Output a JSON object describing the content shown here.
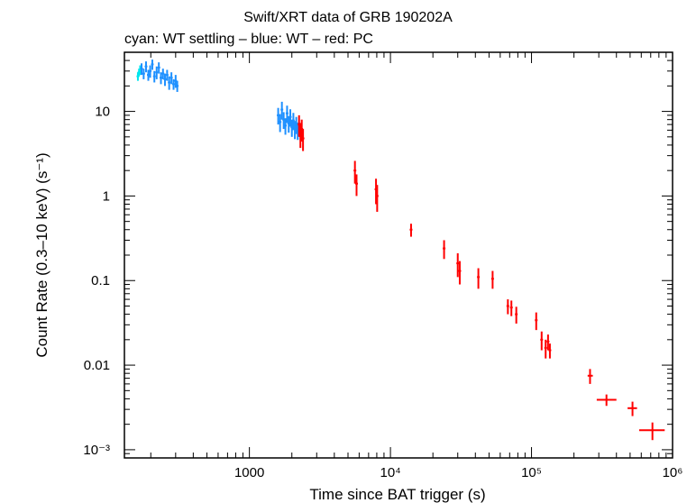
{
  "chart_data": {
    "type": "scatter",
    "title": "Swift/XRT data of GRB 190202A",
    "subtitle": "cyan: WT settling – blue: WT – red: PC",
    "xlabel": "Time since BAT trigger (s)",
    "ylabel": "Count Rate (0.3–10 keV) (s⁻¹)",
    "xscale": "log",
    "yscale": "log",
    "xlim": [
      130,
      1000000
    ],
    "ylim": [
      0.0008,
      50
    ],
    "x_ticks": [
      {
        "value": 1000,
        "label": "1000"
      },
      {
        "value": 10000,
        "label": "10⁴"
      },
      {
        "value": 100000,
        "label": "10⁵"
      },
      {
        "value": 1000000,
        "label": "10⁶"
      }
    ],
    "y_ticks": [
      {
        "value": 10,
        "label": "10"
      },
      {
        "value": 1,
        "label": "1"
      },
      {
        "value": 0.1,
        "label": "0.1"
      },
      {
        "value": 0.01,
        "label": "0.01"
      },
      {
        "value": 0.001,
        "label": "10⁻³"
      }
    ],
    "series": [
      {
        "name": "WT settling",
        "color": "#00e5ee",
        "points": [
          {
            "t": 162,
            "rate": 26,
            "rate_err": 3
          },
          {
            "t": 165,
            "rate": 29,
            "rate_err": 3
          },
          {
            "t": 168,
            "rate": 31,
            "rate_err": 4
          }
        ]
      },
      {
        "name": "WT",
        "color": "#1e90ff",
        "points": [
          {
            "t": 172,
            "rate": 32,
            "rate_err": 5
          },
          {
            "t": 178,
            "rate": 28,
            "rate_err": 4
          },
          {
            "t": 185,
            "rate": 34,
            "rate_err": 5
          },
          {
            "t": 192,
            "rate": 27,
            "rate_err": 4
          },
          {
            "t": 198,
            "rate": 30,
            "rate_err": 5
          },
          {
            "t": 205,
            "rate": 36,
            "rate_err": 5
          },
          {
            "t": 212,
            "rate": 26,
            "rate_err": 4
          },
          {
            "t": 220,
            "rate": 29,
            "rate_err": 5
          },
          {
            "t": 228,
            "rate": 33,
            "rate_err": 5
          },
          {
            "t": 236,
            "rate": 25,
            "rate_err": 4
          },
          {
            "t": 244,
            "rate": 28,
            "rate_err": 4
          },
          {
            "t": 252,
            "rate": 24,
            "rate_err": 4
          },
          {
            "t": 261,
            "rate": 27,
            "rate_err": 4
          },
          {
            "t": 270,
            "rate": 22,
            "rate_err": 4
          },
          {
            "t": 280,
            "rate": 25,
            "rate_err": 4
          },
          {
            "t": 290,
            "rate": 21,
            "rate_err": 3
          },
          {
            "t": 300,
            "rate": 23,
            "rate_err": 4
          },
          {
            "t": 308,
            "rate": 20,
            "rate_err": 3
          },
          {
            "t": 1600,
            "rate": 9.0,
            "rate_err": 2.0
          },
          {
            "t": 1650,
            "rate": 7.5,
            "rate_err": 1.8
          },
          {
            "t": 1700,
            "rate": 10.5,
            "rate_err": 2.5
          },
          {
            "t": 1750,
            "rate": 8.0,
            "rate_err": 1.8
          },
          {
            "t": 1800,
            "rate": 6.8,
            "rate_err": 1.5
          },
          {
            "t": 1850,
            "rate": 9.5,
            "rate_err": 2.2
          },
          {
            "t": 1900,
            "rate": 7.2,
            "rate_err": 1.6
          },
          {
            "t": 1950,
            "rate": 8.6,
            "rate_err": 2.0
          },
          {
            "t": 2000,
            "rate": 6.5,
            "rate_err": 1.5
          },
          {
            "t": 2050,
            "rate": 7.8,
            "rate_err": 1.8
          },
          {
            "t": 2100,
            "rate": 6.2,
            "rate_err": 1.5
          },
          {
            "t": 2150,
            "rate": 7.0,
            "rate_err": 1.6
          },
          {
            "t": 2200,
            "rate": 6.0,
            "rate_err": 1.4
          }
        ]
      },
      {
        "name": "PC",
        "color": "#ff0000",
        "points": [
          {
            "t": 2250,
            "rate": 7.0,
            "rate_err": 2.0
          },
          {
            "t": 2300,
            "rate": 5.5,
            "rate_err": 1.8
          },
          {
            "t": 2350,
            "rate": 6.2,
            "rate_err": 1.8
          },
          {
            "t": 2400,
            "rate": 4.8,
            "rate_err": 1.4
          },
          {
            "t": 5600,
            "rate": 2.0,
            "rate_err": 0.6
          },
          {
            "t": 5750,
            "rate": 1.4,
            "rate_err": 0.4
          },
          {
            "t": 7900,
            "rate": 1.2,
            "rate_err": 0.4
          },
          {
            "t": 8050,
            "rate": 1.0,
            "rate_err": 0.35
          },
          {
            "t": 14000,
            "rate": 0.4,
            "rate_err": 0.07
          },
          {
            "t": 24000,
            "rate": 0.24,
            "rate_err": 0.06
          },
          {
            "t": 30000,
            "rate": 0.16,
            "rate_err": 0.05
          },
          {
            "t": 31000,
            "rate": 0.13,
            "rate_err": 0.04
          },
          {
            "t": 42000,
            "rate": 0.11,
            "rate_err": 0.03
          },
          {
            "t": 53000,
            "rate": 0.105,
            "rate_err": 0.025
          },
          {
            "t": 68000,
            "rate": 0.05,
            "rate_err": 0.01
          },
          {
            "t": 72000,
            "rate": 0.048,
            "rate_err": 0.01
          },
          {
            "t": 78000,
            "rate": 0.04,
            "rate_err": 0.009
          },
          {
            "t": 108000,
            "rate": 0.034,
            "rate_err": 0.008
          },
          {
            "t": 118000,
            "rate": 0.02,
            "rate_err": 0.005
          },
          {
            "t": 126000,
            "rate": 0.016,
            "rate_err": 0.004
          },
          {
            "t": 131000,
            "rate": 0.019,
            "rate_err": 0.004
          },
          {
            "t": 135000,
            "rate": 0.015,
            "rate_err": 0.003
          },
          {
            "t": 260000,
            "rate": 0.0075,
            "rate_err": 0.0015,
            "t_lo": 250000,
            "t_hi": 272000
          },
          {
            "t": 340000,
            "rate": 0.0039,
            "rate_err": 0.0006,
            "t_lo": 290000,
            "t_hi": 400000
          },
          {
            "t": 520000,
            "rate": 0.0031,
            "rate_err": 0.0006,
            "t_lo": 480000,
            "t_hi": 560000
          },
          {
            "t": 720000,
            "rate": 0.0017,
            "rate_err": 0.0004,
            "t_lo": 580000,
            "t_hi": 880000
          }
        ]
      }
    ]
  }
}
